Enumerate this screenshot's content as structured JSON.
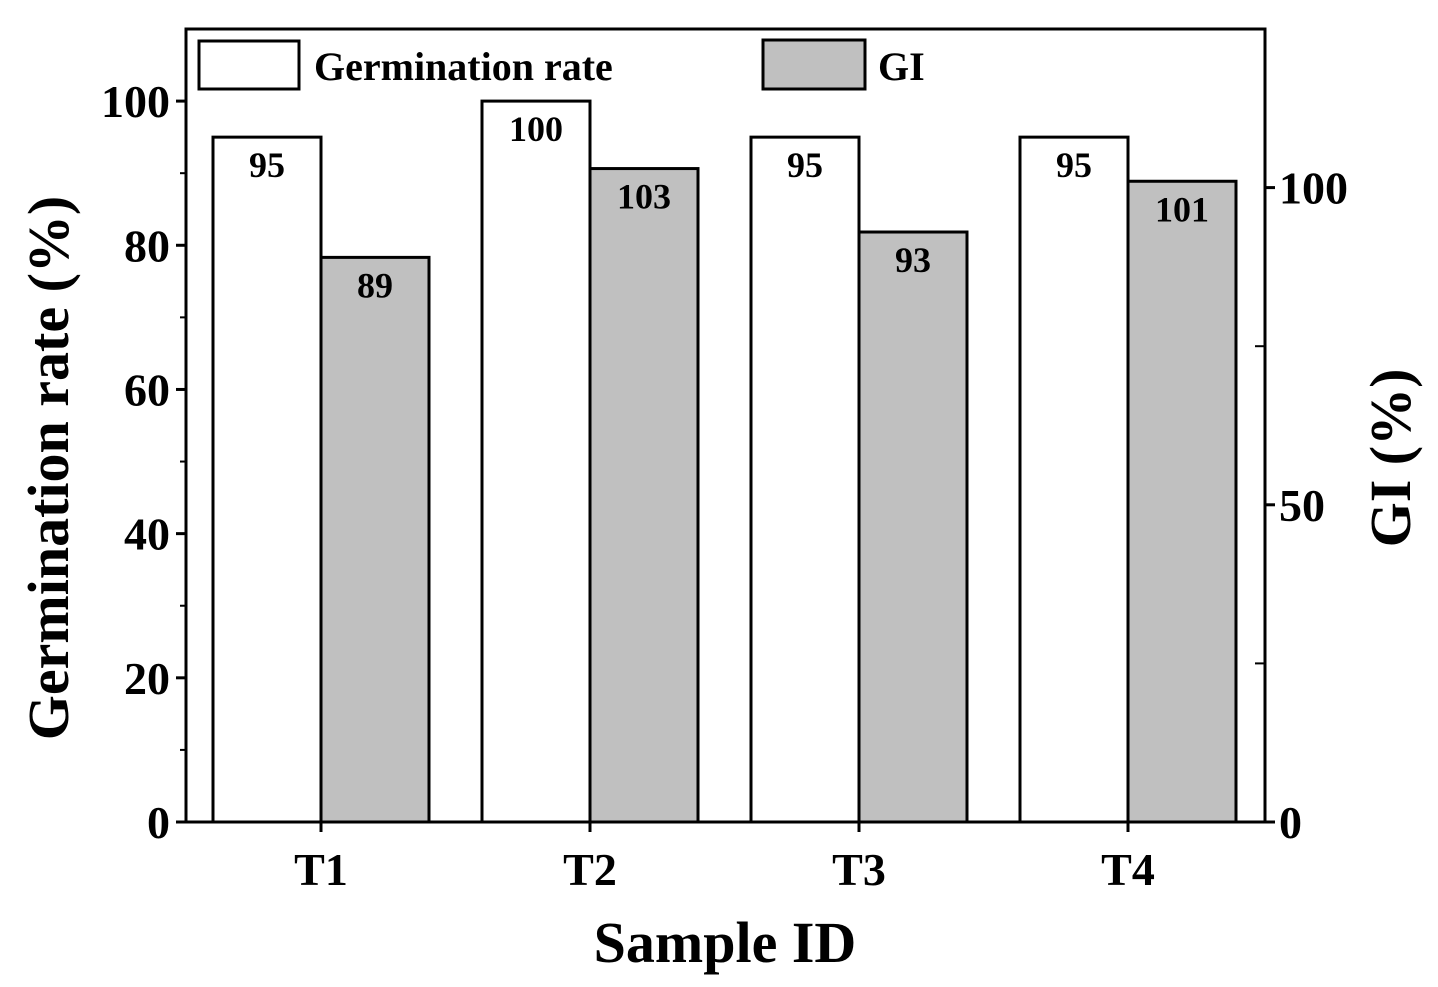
{
  "chart_data": {
    "type": "bar",
    "categories": [
      "T1",
      "T2",
      "T3",
      "T4"
    ],
    "series": [
      {
        "name": "Germination rate",
        "axis": "left",
        "values": [
          95,
          100,
          95,
          95
        ],
        "labels": [
          "95",
          "100",
          "95",
          "95"
        ],
        "color": "#ffffff"
      },
      {
        "name": "GI",
        "axis": "right",
        "values": [
          89,
          103,
          93,
          101
        ],
        "labels": [
          "89",
          "103",
          "93",
          "101"
        ],
        "color": "#c0c0c0"
      }
    ],
    "xlabel": "Sample ID",
    "ylabel_left": "Germination rate (%)",
    "ylabel_right": "GI (%)",
    "ylim_left": [
      0,
      110
    ],
    "ylim_right": [
      0,
      125
    ],
    "yticks_left": [
      0,
      20,
      40,
      60,
      80,
      100
    ],
    "yticks_right": [
      0,
      50,
      100
    ],
    "yticks_right_minor": [
      25,
      75
    ],
    "legend_position": "top",
    "grid": false
  }
}
